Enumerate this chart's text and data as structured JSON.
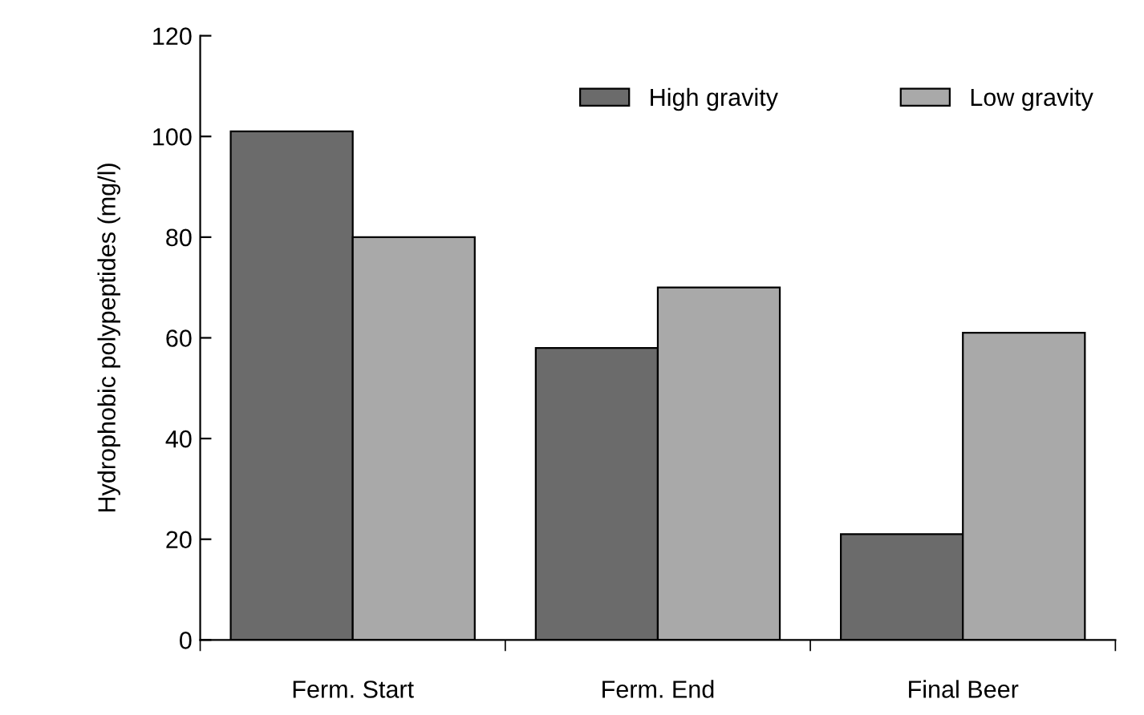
{
  "chart_data": {
    "type": "bar",
    "ylabel": "Hydrophobic polypeptides (mg/l)",
    "categories": [
      "Ferm. Start",
      "Ferm. End",
      "Final Beer"
    ],
    "series": [
      {
        "name": "High gravity",
        "color": "#6b6b6b",
        "values": [
          101,
          58,
          21
        ]
      },
      {
        "name": "Low gravity",
        "color": "#a9a9a9",
        "values": [
          80,
          70,
          61
        ]
      }
    ],
    "ylim": [
      0,
      120
    ],
    "yticks": [
      0,
      20,
      40,
      60,
      80,
      100,
      120
    ],
    "grid": false,
    "legend": "top right"
  }
}
